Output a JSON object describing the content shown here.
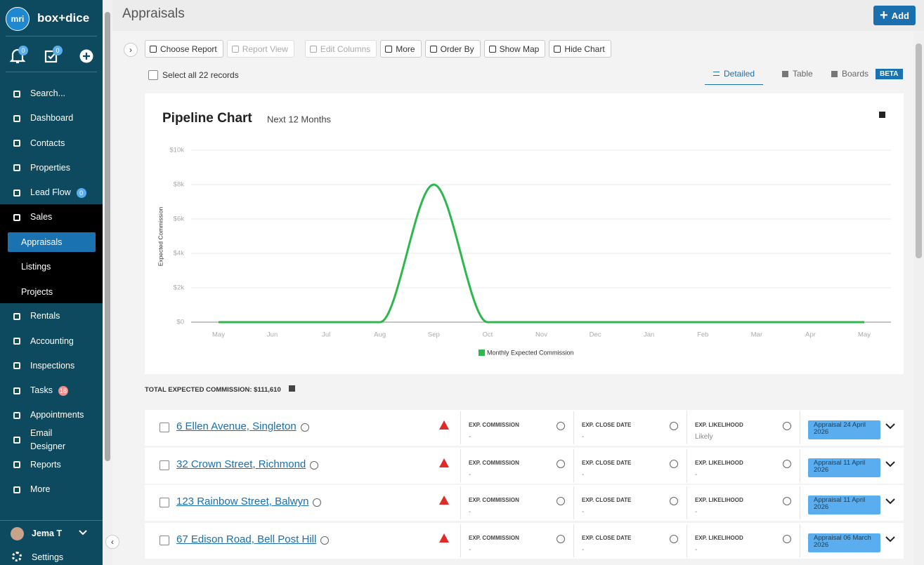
{
  "sidebar": {
    "logo": "mri",
    "brand": "box+dice",
    "notification_count": "0",
    "task_count": "0",
    "nav": [
      {
        "label": "Search..."
      },
      {
        "label": "Dashboard"
      },
      {
        "label": "Contacts"
      },
      {
        "label": "Properties"
      },
      {
        "label": "Lead Flow",
        "badge": "0"
      },
      {
        "label": "Sales",
        "children": [
          "Appraisals",
          "Listings",
          "Projects"
        ]
      },
      {
        "label": "Rentals"
      },
      {
        "label": "Accounting"
      },
      {
        "label": "Inspections"
      },
      {
        "label": "Tasks",
        "badge": "18"
      },
      {
        "label": "Appointments"
      },
      {
        "label": "Email Designer"
      },
      {
        "label": "Reports"
      },
      {
        "label": "More"
      }
    ],
    "user": "Jema T",
    "settings": "Settings"
  },
  "header": {
    "title": "Appraisals",
    "add_button": "Add"
  },
  "toolbar": [
    {
      "label": "Choose Report"
    },
    {
      "label": "Report View",
      "disabled": true
    },
    {
      "label": "Edit Columns",
      "disabled": true
    },
    {
      "label": "More"
    },
    {
      "label": "Order By"
    },
    {
      "label": "Show Map"
    },
    {
      "label": "Hide Chart"
    }
  ],
  "select_all": "Select all 22 records",
  "views": [
    {
      "label": "Detailed",
      "selected": true
    },
    {
      "label": "Table"
    },
    {
      "label": "Boards",
      "badge": "BETA"
    }
  ],
  "chart_data": {
    "type": "line",
    "title": "Pipeline Chart",
    "subtitle": "Next 12 Months",
    "y_label": "Expected Commission",
    "categories": [
      "May",
      "Jun",
      "Jul",
      "Aug",
      "Sep",
      "Oct",
      "Nov",
      "Dec",
      "Jan",
      "Feb",
      "Mar",
      "Apr",
      "May"
    ],
    "series": [
      {
        "name": "Monthly Expected Commission",
        "color": "#2db84d",
        "values": [
          0,
          0,
          0,
          0,
          8000,
          0,
          0,
          0,
          0,
          0,
          0,
          0,
          0
        ]
      }
    ],
    "ylim": [
      0,
      10000
    ],
    "yticks": [
      {
        "value": 0,
        "label": "$0"
      },
      {
        "value": 2000,
        "label": "$2k"
      },
      {
        "value": 4000,
        "label": "$4k"
      },
      {
        "value": 6000,
        "label": "$6k"
      },
      {
        "value": 8000,
        "label": "$8k"
      },
      {
        "value": 10000,
        "label": "$10k"
      }
    ],
    "grid": true,
    "smooth": true
  },
  "total": "TOTAL EXPECTED COMMISSION: $111,610",
  "columns": [
    "EXP. COMMISSION",
    "EXP. CLOSE DATE",
    "EXP. LIKELIHOOD"
  ],
  "rows": [
    {
      "address": "6 Ellen Avenue, Singleton",
      "commission": "-",
      "close_date": "-",
      "likelihood": "Likely",
      "status": "Appraisal 24 April 2026"
    },
    {
      "address": "32 Crown Street, Richmond",
      "commission": "-",
      "close_date": "-",
      "likelihood": "-",
      "status": "Appraisal 11 April 2026"
    },
    {
      "address": "123 Rainbow Street, Balwyn",
      "commission": "-",
      "close_date": "-",
      "likelihood": "-",
      "status": "Appraisal 11 April 2026"
    },
    {
      "address": "67 Edison Road, Bell Post Hill",
      "commission": "-",
      "close_date": "-",
      "likelihood": "-",
      "status": "Appraisal 06 March 2026"
    }
  ]
}
